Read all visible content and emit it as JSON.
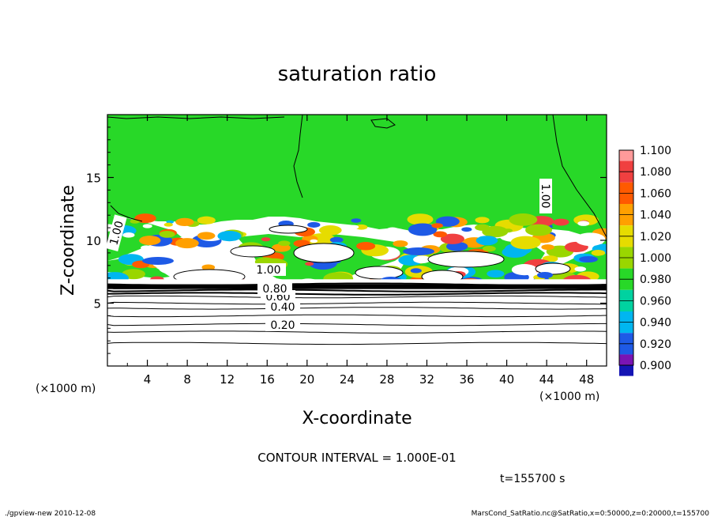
{
  "chart_data": {
    "type": "heatmap",
    "title": "saturation ratio",
    "xlabel": "X-coordinate",
    "ylabel": "Z-coordinate",
    "x_unit": "(×1000 m)",
    "y_unit": "(×1000 m)",
    "xlim": [
      0,
      50
    ],
    "ylim": [
      0,
      20
    ],
    "x_ticks": [
      4,
      8,
      12,
      16,
      20,
      24,
      28,
      32,
      36,
      40,
      44,
      48
    ],
    "y_ticks": [
      5,
      10,
      15
    ],
    "colorbar": {
      "levels": [
        "1.100",
        "1.080",
        "1.060",
        "1.040",
        "1.020",
        "1.000",
        "0.980",
        "0.960",
        "0.940",
        "0.920",
        "0.900"
      ],
      "colors": [
        "#ff9a9a",
        "#f04040",
        "#ff5a00",
        "#ffa000",
        "#e6dc00",
        "#9ad600",
        "#28d828",
        "#00d2a0",
        "#00b6f0",
        "#1e5ae6",
        "#1414b4",
        "#7a14b4"
      ]
    },
    "contour_labels": [
      "0.20",
      "0.40",
      "0.60",
      "0.80",
      "1.00",
      "1.00",
      "1.00"
    ],
    "contour_interval_text": "CONTOUR INTERVAL = 1.000E-01",
    "time_text": "t=155700 s"
  },
  "footer": {
    "left": "./gpview-new   2010-12-08",
    "right": "MarsCond_SatRatio.nc@SatRatio,x=0:50000,z=0:20000,t=155700"
  }
}
